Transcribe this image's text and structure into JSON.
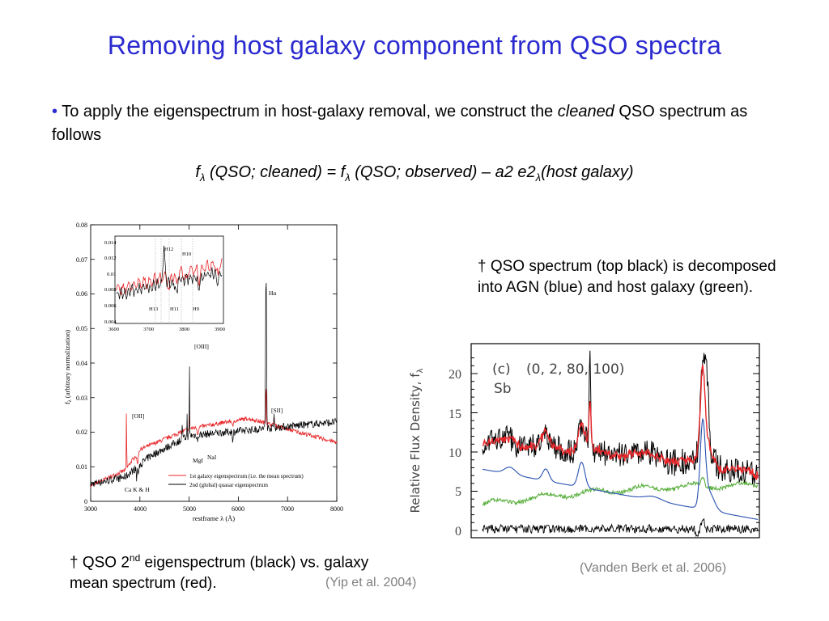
{
  "slide": {
    "title": "Removing host galaxy component from QSO spectra",
    "bullet": {
      "marker": "•",
      "text_before": " To apply the eigenspectrum in host-galaxy removal, we construct the ",
      "emphasis": "cleaned",
      "text_after": " QSO spectrum as follows"
    },
    "formula": {
      "f1": "f",
      "sub1": "λ",
      "part1": " (QSO; cleaned) = f",
      "sub2": "λ",
      "part2": " (QSO; observed) – a2 e2",
      "sub3": "λ",
      "part3": "(host galaxy)"
    },
    "note_right": "† QSO spectrum (top black) is decomposed into AGN (blue) and host galaxy (green).",
    "note_left": {
      "prefix": "† QSO 2",
      "sup": "nd",
      "rest": " eigenspectrum (black) vs. galaxy mean spectrum (red)."
    },
    "citation_right": "(Vanden Berk et al. 2006)",
    "citation_left": "(Yip et al. 2004)"
  },
  "left_figure": {
    "ylabel": "f",
    "ylabel_sub": "λ",
    "ylabel_rest": " (arbitrary normalization)",
    "xlabel": "restframe λ (Å)",
    "xticks": [
      "3000",
      "4000",
      "5000",
      "6000",
      "7000",
      "8000"
    ],
    "yticks": [
      "0",
      "0.01",
      "0.02",
      "0.03",
      "0.04",
      "0.05",
      "0.06",
      "0.07",
      "0.08"
    ],
    "line_labels": {
      "ha": "Hα",
      "oiii": "[OIII]",
      "oii": "[OII]",
      "sii": "[SII]",
      "mgi": "MgI",
      "nai": "NaI",
      "cakh": "Ca K & H"
    },
    "legend": [
      "1st galaxy eigenspectrum (i.e. the mean spectrum)",
      "2nd (global) quasar eigenspectrum"
    ],
    "inset": {
      "xticks": [
        "3600",
        "3700",
        "3800",
        "3900"
      ],
      "yticks": [
        "0.004",
        "0.006",
        "0.008",
        "0.01",
        "0.012",
        "0.014"
      ],
      "labels": {
        "h12": "H12",
        "h10": "H10",
        "h13": "H13",
        "h11": "H11",
        "h9": "H9"
      }
    },
    "colors": {
      "black_series": "#000000",
      "red_series": "#e8262a"
    }
  },
  "right_figure": {
    "ylabel": "Relative Flux Density, f",
    "ylabel_sub": "λ",
    "yticks": [
      "0",
      "5",
      "10",
      "15",
      "20"
    ],
    "panel_label": "(c)",
    "panel_params": "(0, 2, 80, 100)",
    "galaxy_type": "Sb",
    "colors": {
      "total": "#000000",
      "fit": "#e8262a",
      "agn": "#2850b0",
      "host": "#5cb040"
    }
  }
}
